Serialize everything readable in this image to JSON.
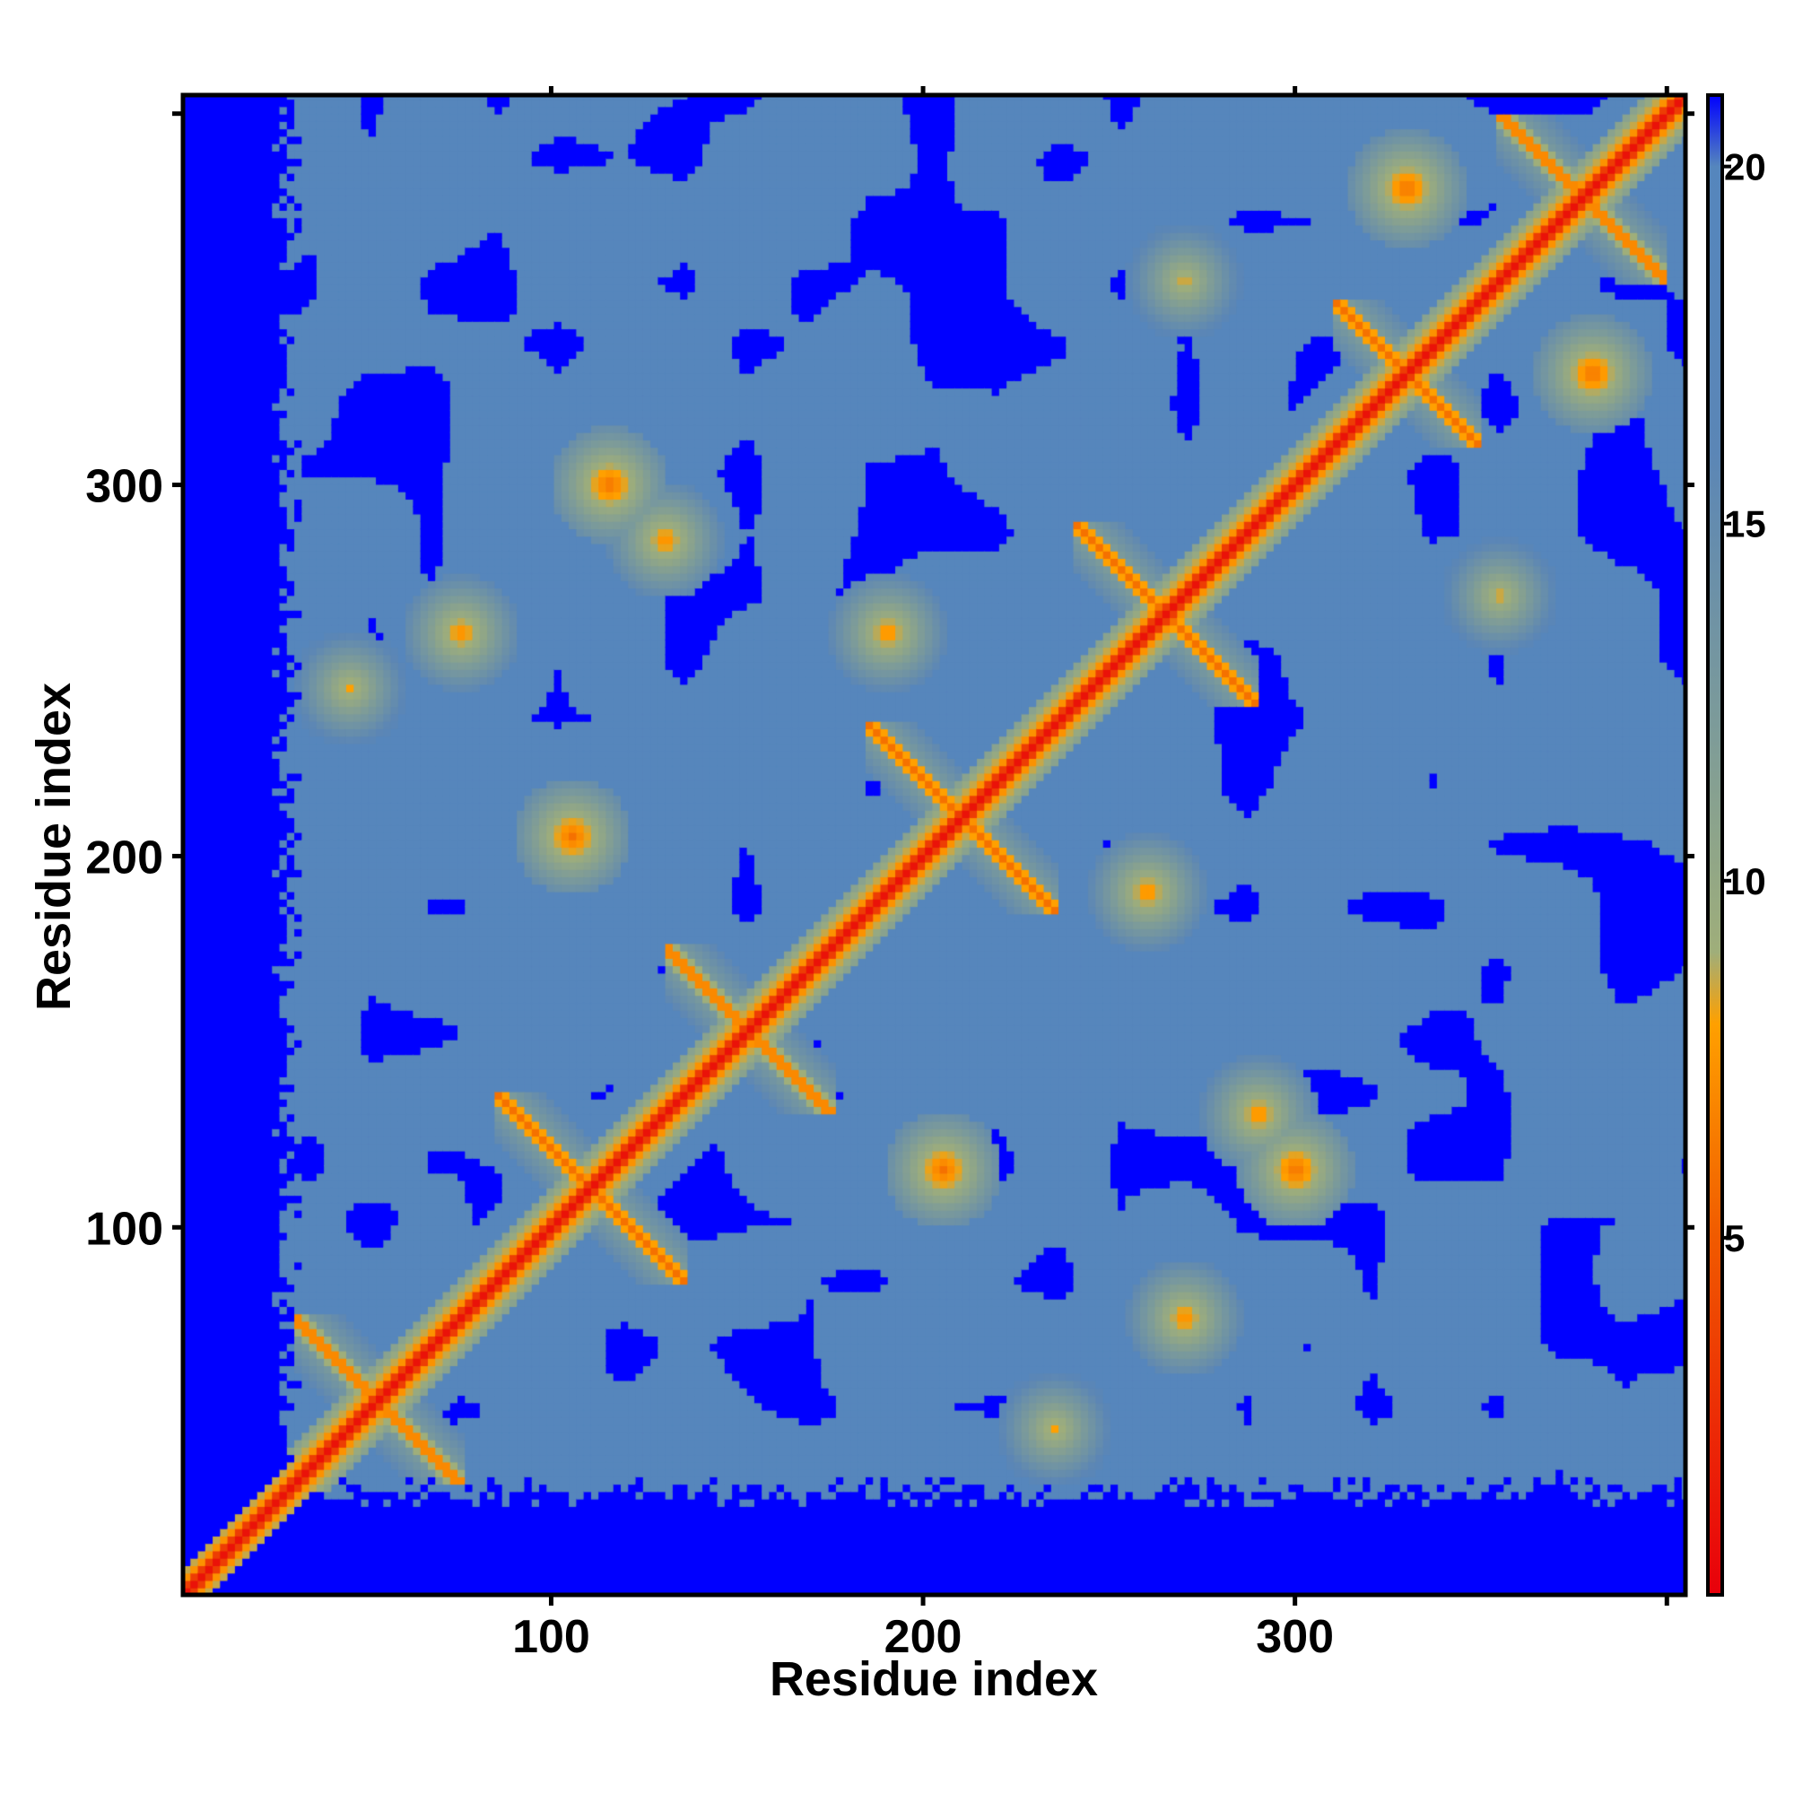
{
  "chart_data": {
    "type": "heatmap",
    "xlabel": "Residue index",
    "ylabel": "Residue index",
    "xlim": [
      1,
      405
    ],
    "ylim": [
      1,
      405
    ],
    "x_ticks": [
      {
        "value": 100,
        "label": "100"
      },
      {
        "value": 200,
        "label": "200"
      },
      {
        "value": 300,
        "label": "300"
      },
      {
        "value": 400,
        "label": ""
      }
    ],
    "y_ticks": [
      {
        "value": 100,
        "label": "100"
      },
      {
        "value": 200,
        "label": "200"
      },
      {
        "value": 300,
        "label": "300"
      },
      {
        "value": 400,
        "label": ""
      }
    ],
    "colorbar": {
      "min": 0,
      "max": 21,
      "ticks": [
        {
          "value": 5,
          "label": "5"
        },
        {
          "value": 10,
          "label": "10"
        },
        {
          "value": 15,
          "label": "15"
        },
        {
          "value": 20,
          "label": "20"
        }
      ],
      "stops": [
        {
          "value": 0,
          "color": "#e8000b"
        },
        {
          "value": 5,
          "color": "#f05a00"
        },
        {
          "value": 8,
          "color": "#ffa000"
        },
        {
          "value": 9,
          "color": "#9fae7a"
        },
        {
          "value": 12,
          "color": "#7e9c98"
        },
        {
          "value": 16,
          "color": "#5b86b6"
        },
        {
          "value": 20,
          "color": "#5586bd"
        },
        {
          "value": 21,
          "color": "#0000ff"
        }
      ]
    },
    "colors": {
      "background_far": "#0000ff",
      "mid": "#5586bd",
      "near": "#e8000b",
      "frame": "#000000"
    },
    "structure": {
      "diagonal_band": "residue i vs i contacts (0–5)",
      "helical_cross_segments": [
        [
          30,
          75
        ],
        [
          85,
          135
        ],
        [
          130,
          175
        ],
        [
          185,
          235
        ],
        [
          240,
          290
        ],
        [
          310,
          350
        ],
        [
          355,
          400
        ]
      ],
      "contact_features": [
        {
          "x": 105,
          "y": 205,
          "value": 6
        },
        {
          "x": 115,
          "y": 300,
          "value": 6
        },
        {
          "x": 205,
          "y": 115,
          "value": 6
        },
        {
          "x": 300,
          "y": 115,
          "value": 6
        },
        {
          "x": 270,
          "y": 75,
          "value": 7
        },
        {
          "x": 75,
          "y": 260,
          "value": 7
        },
        {
          "x": 290,
          "y": 130,
          "value": 7
        },
        {
          "x": 130,
          "y": 285,
          "value": 7
        },
        {
          "x": 235,
          "y": 45,
          "value": 8
        },
        {
          "x": 45,
          "y": 245,
          "value": 8
        },
        {
          "x": 355,
          "y": 270,
          "value": 8
        },
        {
          "x": 270,
          "y": 355,
          "value": 8
        },
        {
          "x": 260,
          "y": 190,
          "value": 7
        },
        {
          "x": 190,
          "y": 260,
          "value": 7
        },
        {
          "x": 380,
          "y": 330,
          "value": 6
        },
        {
          "x": 330,
          "y": 380,
          "value": 6
        }
      ]
    }
  }
}
